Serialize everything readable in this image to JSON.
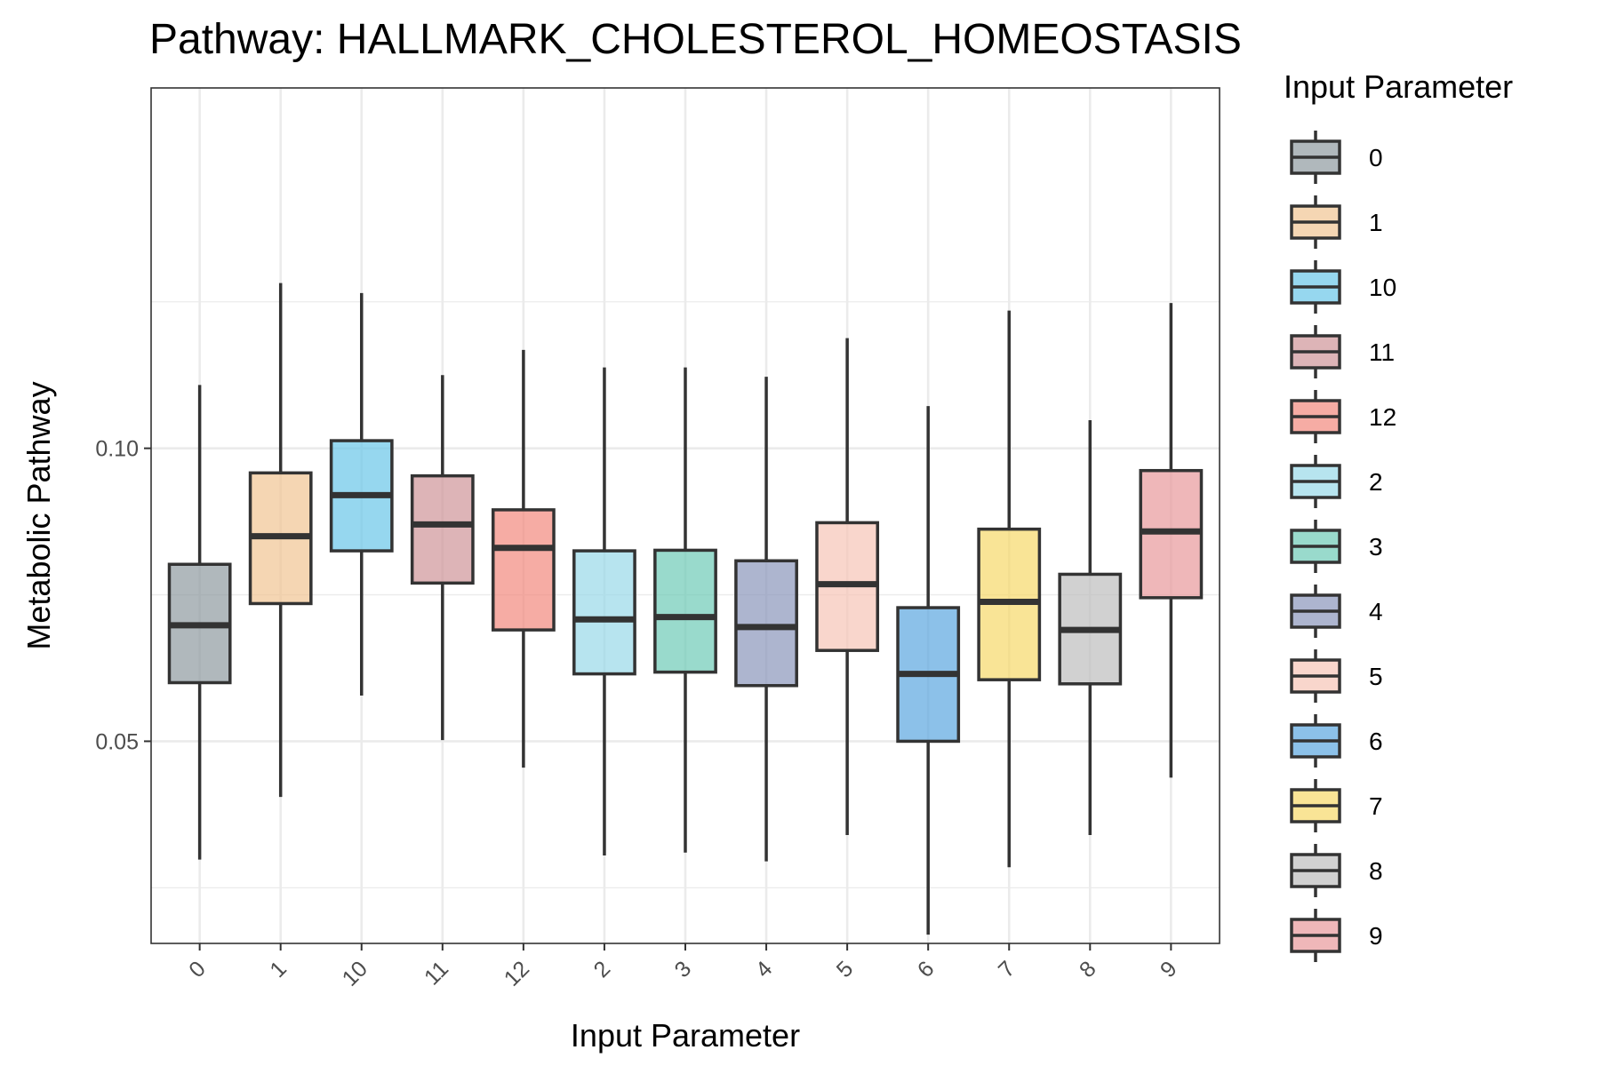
{
  "chart_data": {
    "type": "box",
    "title": "Pathway: HALLMARK_CHOLESTEROL_HOMEOSTASIS",
    "xlabel": "Input Parameter",
    "ylabel": "Metabolic Pathway",
    "ylim": [
      0.0155,
      0.1615
    ],
    "y_major_ticks": [
      0.05,
      0.1
    ],
    "y_major_tick_labels": [
      "0.05",
      "0.10"
    ],
    "y_minor_ticks": [
      0.025,
      0.075,
      0.125
    ],
    "grid": true,
    "legend": {
      "title": "Input Parameter",
      "position": "right"
    },
    "categories": [
      "0",
      "1",
      "10",
      "11",
      "12",
      "2",
      "3",
      "4",
      "5",
      "6",
      "7",
      "8",
      "9"
    ],
    "series": [
      {
        "category": "0",
        "color": "#8E9AA0",
        "min": 0.0298,
        "q1": 0.06,
        "median": 0.0698,
        "q3": 0.0802,
        "max": 0.1108
      },
      {
        "category": "1",
        "color": "#F1C593",
        "min": 0.0405,
        "q1": 0.0735,
        "median": 0.085,
        "q3": 0.0958,
        "max": 0.1282
      },
      {
        "category": "10",
        "color": "#69C6E8",
        "min": 0.0578,
        "q1": 0.0825,
        "median": 0.092,
        "q3": 0.1013,
        "max": 0.1265
      },
      {
        "category": "11",
        "color": "#CF9498",
        "min": 0.0502,
        "q1": 0.077,
        "median": 0.087,
        "q3": 0.0953,
        "max": 0.1125
      },
      {
        "category": "12",
        "color": "#F2897E",
        "min": 0.0455,
        "q1": 0.069,
        "median": 0.083,
        "q3": 0.0895,
        "max": 0.1168
      },
      {
        "category": "2",
        "color": "#98D9E8",
        "min": 0.0305,
        "q1": 0.0615,
        "median": 0.0708,
        "q3": 0.0825,
        "max": 0.1138
      },
      {
        "category": "3",
        "color": "#6DCBB7",
        "min": 0.031,
        "q1": 0.0618,
        "median": 0.0712,
        "q3": 0.0826,
        "max": 0.1138
      },
      {
        "category": "4",
        "color": "#8A96BA",
        "min": 0.0295,
        "q1": 0.0595,
        "median": 0.0695,
        "q3": 0.0808,
        "max": 0.1122
      },
      {
        "category": "5",
        "color": "#F7C4B6",
        "min": 0.034,
        "q1": 0.0655,
        "median": 0.0768,
        "q3": 0.0873,
        "max": 0.1188
      },
      {
        "category": "6",
        "color": "#5BA6E0",
        "min": 0.017,
        "q1": 0.05,
        "median": 0.0615,
        "q3": 0.0728,
        "max": 0.1072
      },
      {
        "category": "7",
        "color": "#F7D969",
        "min": 0.0285,
        "q1": 0.0605,
        "median": 0.0738,
        "q3": 0.0862,
        "max": 0.1235
      },
      {
        "category": "8",
        "color": "#BEBEBE",
        "min": 0.034,
        "q1": 0.0598,
        "median": 0.069,
        "q3": 0.0785,
        "max": 0.1048
      },
      {
        "category": "9",
        "color": "#E8999B",
        "min": 0.0438,
        "q1": 0.0745,
        "median": 0.0858,
        "q3": 0.0962,
        "max": 0.1248
      }
    ]
  }
}
